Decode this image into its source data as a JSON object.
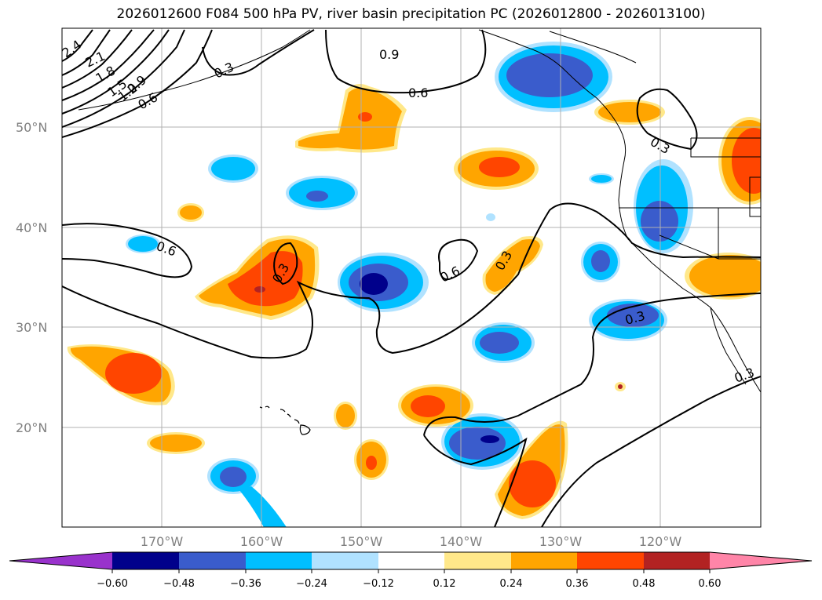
{
  "title": "2026012600 F084 500 hPa PV, river basin precipitation PC (2026012800 - 2026013100)",
  "map": {
    "lat_labels": [
      "50°N",
      "40°N",
      "30°N",
      "20°N"
    ],
    "lon_labels": [
      "170°W",
      "160°W",
      "150°W",
      "140°W",
      "130°W",
      "120°W"
    ],
    "gridlines": true
  },
  "pv_contour_labels": [
    "2.4",
    "2.1",
    "1.8",
    "1.5",
    "1.2",
    "0.9",
    "0.6",
    "0.3",
    "0.9",
    "0.6",
    "0.3",
    "0.6",
    "0.3",
    "0.6",
    "0.3",
    "0.3",
    "0.3"
  ],
  "colorbar": {
    "ticks": [
      "−0.60",
      "−0.48",
      "−0.36",
      "−0.24",
      "−0.12",
      "0.12",
      "0.24",
      "0.36",
      "0.48",
      "0.60"
    ],
    "colors": [
      "#9932cc",
      "#00008b",
      "#3a5ccc",
      "#00bfff",
      "#b0e2ff",
      "#ffffff",
      "#ffe88a",
      "#ffa500",
      "#ff4500",
      "#b22222",
      "#ff85a8"
    ]
  },
  "colors": {
    "deep_neg": "#00008b",
    "mid_neg": "#3a5ccc",
    "light_neg": "#00bfff",
    "pale_neg": "#b0e2ff",
    "pale_pos": "#ffe88a",
    "light_pos": "#ffa500",
    "mid_pos": "#ff4500",
    "deep_pos": "#b22222"
  }
}
